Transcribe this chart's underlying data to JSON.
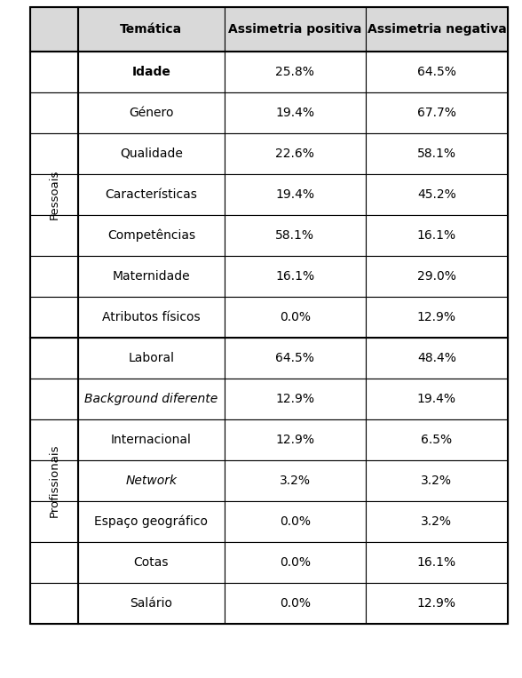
{
  "header": [
    "Temática",
    "Assimetria positiva",
    "Assimetria negativa"
  ],
  "rows": [
    {
      "group": "Pessoais",
      "tema": "Idade",
      "pos": "25.8%",
      "neg": "64.5%",
      "bold": true,
      "italic": false
    },
    {
      "group": "Pessoais",
      "tema": "Género",
      "pos": "19.4%",
      "neg": "67.7%",
      "bold": false,
      "italic": false
    },
    {
      "group": "Pessoais",
      "tema": "Qualidade",
      "pos": "22.6%",
      "neg": "58.1%",
      "bold": false,
      "italic": false
    },
    {
      "group": "Pessoais",
      "tema": "Características",
      "pos": "19.4%",
      "neg": "45.2%",
      "bold": false,
      "italic": false
    },
    {
      "group": "Pessoais",
      "tema": "Competências",
      "pos": "58.1%",
      "neg": "16.1%",
      "bold": false,
      "italic": false
    },
    {
      "group": "Pessoais",
      "tema": "Maternidade",
      "pos": "16.1%",
      "neg": "29.0%",
      "bold": false,
      "italic": false
    },
    {
      "group": "Pessoais",
      "tema": "Atributos físicos",
      "pos": "0.0%",
      "neg": "12.9%",
      "bold": false,
      "italic": false
    },
    {
      "group": "Profissionais",
      "tema": "Laboral",
      "pos": "64.5%",
      "neg": "48.4%",
      "bold": false,
      "italic": false
    },
    {
      "group": "Profissionais",
      "tema": "Background diferente",
      "pos": "12.9%",
      "neg": "19.4%",
      "bold": false,
      "italic": true
    },
    {
      "group": "Profissionais",
      "tema": "Internacional",
      "pos": "12.9%",
      "neg": "6.5%",
      "bold": false,
      "italic": false
    },
    {
      "group": "Profissionais",
      "tema": "Network",
      "pos": "3.2%",
      "neg": "3.2%",
      "bold": false,
      "italic": true
    },
    {
      "group": "Profissionais",
      "tema": "Espaço geográfico",
      "pos": "0.0%",
      "neg": "3.2%",
      "bold": false,
      "italic": false
    },
    {
      "group": "Profissionais",
      "tema": "Cotas",
      "pos": "0.0%",
      "neg": "16.1%",
      "bold": false,
      "italic": false
    },
    {
      "group": "Profissionais",
      "tema": "Salário",
      "pos": "0.0%",
      "neg": "12.9%",
      "bold": false,
      "italic": false
    }
  ],
  "group_label_pessoais": "Pessoais",
  "group_label_profissionais": "Profissionais",
  "bg_header": "#d9d9d9",
  "bg_white": "#ffffff",
  "border_color": "#000000",
  "text_color": "#000000",
  "header_font_size": 10,
  "cell_font_size": 10,
  "group_font_size": 9.5
}
